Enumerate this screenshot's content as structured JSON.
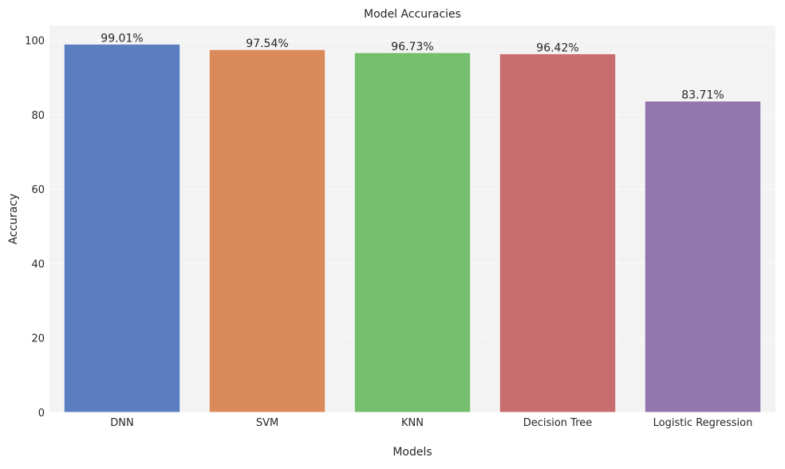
{
  "chart_data": {
    "type": "bar",
    "title": "Model Accuracies",
    "xlabel": "Models",
    "ylabel": "Accuracy",
    "categories": [
      "DNN",
      "SVM",
      "KNN",
      "Decision Tree",
      "Logistic Regression"
    ],
    "values": [
      99.01,
      97.54,
      96.73,
      96.42,
      83.71
    ],
    "value_labels": [
      "99.01%",
      "97.54%",
      "96.73%",
      "96.42%",
      "83.71%"
    ],
    "ylim": [
      0,
      104
    ],
    "yticks": [
      0,
      20,
      40,
      60,
      80,
      100
    ],
    "ytick_labels": [
      "0",
      "20",
      "40",
      "60",
      "80",
      "100"
    ],
    "grid": true,
    "legend": "none",
    "colors": [
      "#5b7ec1",
      "#da895b",
      "#74be6e",
      "#c76d6d",
      "#9376ad"
    ],
    "background": "#f3f3f3",
    "grid_color": "#ffffff"
  }
}
